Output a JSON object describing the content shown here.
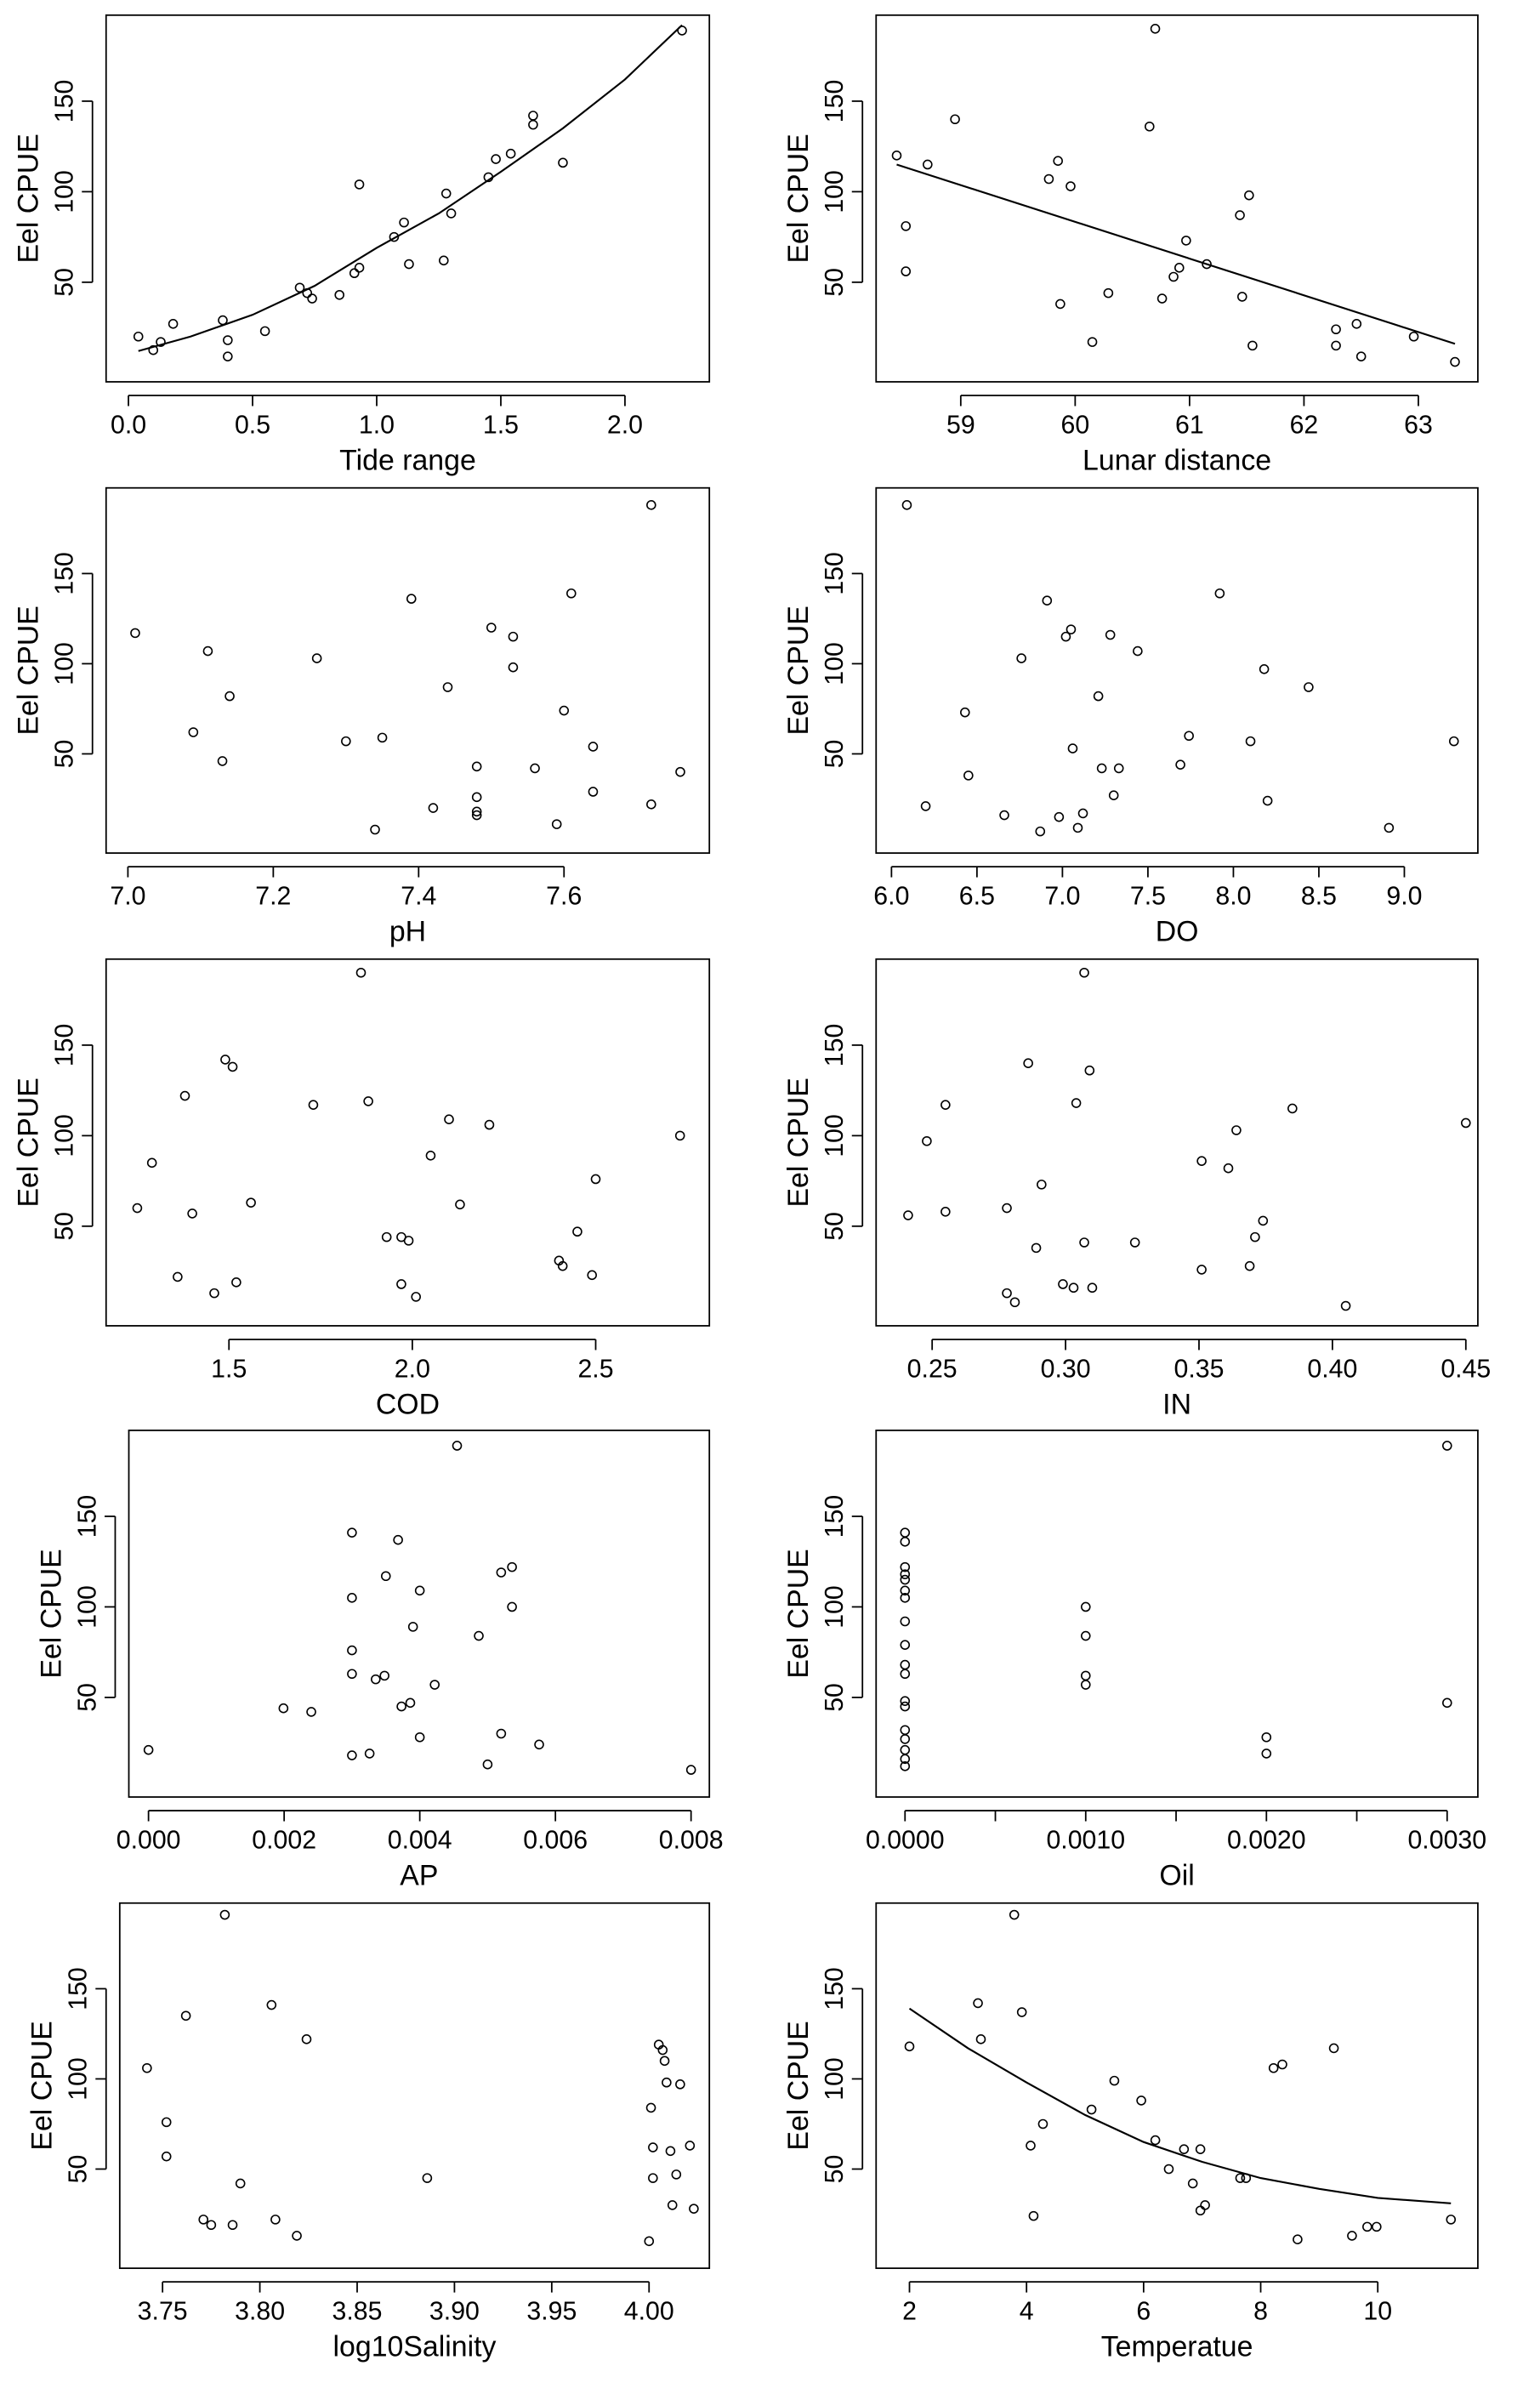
{
  "chart_data": [
    {
      "type": "scatter",
      "x_label": "Tide range",
      "y_label": "Eel CPUE",
      "x": [
        0.04,
        0.1,
        0.13,
        0.18,
        0.38,
        0.4,
        0.4,
        0.55,
        0.69,
        0.72,
        0.74,
        0.85,
        0.91,
        0.93,
        0.93,
        1.07,
        1.11,
        1.13,
        1.27,
        1.28,
        1.3,
        1.45,
        1.48,
        1.54,
        1.63,
        1.63,
        1.75,
        2.23
      ],
      "values": [
        20,
        12.5,
        17,
        27,
        29,
        18,
        9,
        23,
        47,
        44,
        41,
        43,
        55,
        58,
        104,
        75,
        83,
        60,
        62,
        99,
        88,
        108,
        118,
        121,
        137,
        142,
        116,
        189
      ],
      "trend": {
        "x": [
          0.04,
          0.25,
          0.5,
          0.75,
          1.0,
          1.25,
          1.5,
          1.75,
          2.0,
          2.23
        ],
        "values": [
          12,
          20,
          32,
          48,
          69,
          88,
          111,
          135,
          162,
          192
        ]
      },
      "xlim": [
        -0.09,
        2.34
      ],
      "ylim": [
        -5,
        197.5
      ],
      "xticks": [
        {
          "value": 0,
          "label": "0.0"
        },
        0.5,
        {
          "value": 1,
          "label": "1.0"
        },
        1.5,
        {
          "value": 2,
          "label": "2.0"
        }
      ],
      "yticks": [
        50,
        100,
        150
      ]
    },
    {
      "type": "scatter",
      "x_label": "Lunar distance",
      "y_label": "Eel CPUE",
      "x": [
        58.44,
        58.52,
        58.52,
        58.71,
        58.95,
        59.77,
        59.85,
        59.87,
        59.96,
        60.15,
        60.29,
        60.65,
        60.7,
        60.76,
        60.86,
        60.91,
        60.97,
        61.15,
        61.44,
        61.46,
        61.52,
        61.55,
        62.28,
        62.28,
        62.46,
        62.5,
        62.96,
        63.32
      ],
      "values": [
        120,
        81,
        56,
        115,
        140,
        107,
        117,
        38,
        103,
        17,
        44,
        136,
        190,
        41,
        53,
        58,
        73,
        60,
        87,
        42,
        98,
        15,
        24,
        15,
        27,
        9,
        20,
        6
      ],
      "trend": {
        "x": [
          58.44,
          63.32
        ],
        "values": [
          115,
          16
        ]
      },
      "xlim": [
        58.26,
        63.52
      ],
      "ylim": [
        -5,
        197.5
      ],
      "xticks": [
        59,
        60,
        61,
        62,
        63
      ],
      "yticks": [
        50,
        100,
        150
      ]
    },
    {
      "type": "scatter",
      "x_label": "pH",
      "y_label": "Eel CPUE",
      "x": [
        7.01,
        7.11,
        7.14,
        7.13,
        7.09,
        7.26,
        7.3,
        7.35,
        7.34,
        7.39,
        7.42,
        7.44,
        7.48,
        7.48,
        7.48,
        7.48,
        7.5,
        7.53,
        7.53,
        7.56,
        7.59,
        7.6,
        7.61,
        7.64,
        7.64,
        7.72,
        7.72,
        7.76
      ],
      "values": [
        117,
        107,
        82,
        46,
        62,
        103,
        57,
        59,
        8,
        136,
        20,
        87,
        43,
        26,
        18,
        16,
        120,
        98,
        115,
        42,
        11,
        74,
        139,
        54,
        29,
        188,
        22,
        40
      ],
      "xlim": [
        6.97,
        7.8
      ],
      "ylim": [
        -5,
        197.5
      ],
      "xticks": [
        {
          "value": 7,
          "label": "7.0"
        },
        7.2,
        7.4,
        7.6
      ],
      "yticks": [
        50,
        100,
        150
      ]
    },
    {
      "type": "scatter",
      "x_label": "DO",
      "y_label": "Eel CPUE",
      "x": [
        6.09,
        6.2,
        6.43,
        6.45,
        6.66,
        6.76,
        6.87,
        6.91,
        6.98,
        7.02,
        7.05,
        7.06,
        7.09,
        7.12,
        7.21,
        7.23,
        7.28,
        7.3,
        7.33,
        7.44,
        7.69,
        7.74,
        7.92,
        8.1,
        8.18,
        8.2,
        8.44,
        8.91,
        9.29
      ],
      "values": [
        188,
        21,
        73,
        38,
        16,
        103,
        7,
        135,
        15,
        115,
        119,
        53,
        9,
        17,
        82,
        42,
        116,
        27,
        42,
        107,
        44,
        60,
        139,
        57,
        97,
        24,
        87,
        9,
        57
      ],
      "xlim": [
        5.91,
        9.43
      ],
      "ylim": [
        -5,
        197.5
      ],
      "xticks": [
        {
          "value": 6,
          "label": "6.0"
        },
        6.5,
        {
          "value": 7,
          "label": "7.0"
        },
        7.5,
        {
          "value": 8,
          "label": "8.0"
        },
        8.5,
        {
          "value": 9,
          "label": "9.0"
        }
      ],
      "yticks": [
        50,
        100,
        150
      ]
    },
    {
      "type": "scatter",
      "x_label": "COD",
      "y_label": "Eel CPUE",
      "x": [
        1.25,
        1.29,
        1.36,
        1.38,
        1.4,
        1.46,
        1.49,
        1.51,
        1.52,
        1.56,
        1.73,
        1.86,
        1.88,
        1.93,
        1.97,
        1.97,
        1.99,
        2.01,
        2.05,
        2.1,
        2.13,
        2.21,
        2.4,
        2.41,
        2.45,
        2.49,
        2.5,
        2.73
      ],
      "values": [
        60,
        85,
        22,
        122,
        57,
        13,
        142,
        138,
        19,
        63,
        117,
        190,
        119,
        44,
        44,
        18,
        42,
        11,
        89,
        109,
        62,
        106,
        31,
        28,
        47,
        23,
        76,
        100
      ],
      "xlim": [
        1.165,
        2.81
      ],
      "ylim": [
        -5,
        197.5
      ],
      "xticks": [
        1.5,
        {
          "value": 2,
          "label": "2.0"
        },
        2.5
      ],
      "yticks": [
        50,
        100,
        150
      ]
    },
    {
      "type": "scatter",
      "x_label": "IN",
      "y_label": "Eel CPUE",
      "x": [
        0.241,
        0.248,
        0.255,
        0.255,
        0.278,
        0.278,
        0.281,
        0.286,
        0.289,
        0.291,
        0.299,
        0.303,
        0.304,
        0.307,
        0.307,
        0.309,
        0.31,
        0.326,
        0.351,
        0.351,
        0.361,
        0.364,
        0.369,
        0.371,
        0.374,
        0.385,
        0.405,
        0.45
      ],
      "values": [
        56,
        97,
        117,
        58,
        60,
        13,
        8,
        140,
        38,
        73,
        18,
        16,
        118,
        190,
        41,
        136,
        16,
        41,
        26,
        86,
        82,
        103,
        28,
        44,
        53,
        115,
        6,
        107
      ],
      "xlim": [
        0.229,
        0.4545
      ],
      "ylim": [
        -5,
        197.5
      ],
      "xticks": [
        0.25,
        {
          "value": 0.3,
          "label": "0.30"
        },
        0.35,
        {
          "value": 0.4,
          "label": "0.40"
        },
        0.45
      ],
      "yticks": [
        50,
        100,
        150
      ]
    },
    {
      "type": "scatter",
      "x_label": "AP",
      "y_label": "Eel CPUE",
      "x": [
        0,
        0.00199,
        0.0024,
        0.003,
        0.003,
        0.003,
        0.003,
        0.003,
        0.00326,
        0.00335,
        0.00348,
        0.0035,
        0.00368,
        0.00373,
        0.00386,
        0.0039,
        0.004,
        0.004,
        0.00422,
        0.00455,
        0.00487,
        0.005,
        0.0052,
        0.0052,
        0.00536,
        0.00536,
        0.00576,
        0.008
      ],
      "values": [
        21,
        44,
        42,
        141,
        105,
        76,
        63,
        18,
        19,
        60,
        62,
        117,
        137,
        45,
        47,
        89,
        109,
        28,
        57,
        189,
        84,
        13,
        119,
        30,
        122,
        100,
        24,
        10
      ],
      "xlim": [
        -0.00029,
        0.00827
      ],
      "ylim": [
        -5,
        197.5
      ],
      "xticks": [
        {
          "value": 0,
          "label": "0.000"
        },
        0.002,
        0.004,
        0.006,
        0.008
      ],
      "yticks": [
        50,
        100,
        150
      ]
    },
    {
      "type": "scatter",
      "x_label": "Oil",
      "y_label": "Eel CPUE",
      "x": [
        0,
        0,
        0,
        0,
        0,
        0,
        0,
        0,
        0,
        0,
        0,
        0,
        0,
        0,
        0,
        0,
        0,
        0,
        0.001,
        0.001,
        0.001,
        0.001,
        0.002,
        0.002,
        0.003,
        0.003
      ],
      "values": [
        141,
        136,
        122,
        118,
        115,
        109,
        105,
        92,
        79,
        68,
        63,
        48,
        45,
        32,
        27,
        21,
        16,
        12,
        100,
        84,
        62,
        57,
        28,
        19,
        189,
        47
      ],
      "xlim": [
        -0.00016,
        0.00317
      ],
      "ylim": [
        -5,
        197.5
      ],
      "xticks": [
        {
          "value": 0,
          "label": "0.0000"
        },
        {
          "value": 0.001,
          "label": "0.0010"
        },
        {
          "value": 0.002,
          "label": "0.0020"
        },
        {
          "value": 0.003,
          "label": "0.0030"
        }
      ],
      "xminor_ticks": [
        0.0005,
        0.0015,
        0.0025
      ],
      "yticks": [
        50,
        100,
        150
      ]
    },
    {
      "type": "scatter",
      "x_label": "log10Salinity",
      "y_label": "Eel CPUE",
      "x": [
        3.742,
        3.752,
        3.752,
        3.762,
        3.771,
        3.775,
        3.782,
        3.786,
        3.79,
        3.806,
        3.808,
        3.819,
        3.824,
        3.886,
        4.0,
        4.001,
        4.002,
        4.002,
        4.005,
        4.007,
        4.008,
        4.009,
        4.011,
        4.012,
        4.014,
        4.016,
        4.021,
        4.023
      ],
      "values": [
        106,
        76,
        57,
        135,
        22,
        19,
        191,
        19,
        42,
        141,
        22,
        13,
        122,
        45,
        10,
        84,
        62,
        45,
        119,
        116,
        110,
        98,
        60,
        30,
        47,
        97,
        63,
        28
      ],
      "xlim": [
        3.728,
        4.031
      ],
      "ylim": [
        -5,
        197.5
      ],
      "xticks": [
        3.75,
        {
          "value": 3.8,
          "label": "3.80"
        },
        3.85,
        {
          "value": 3.9,
          "label": "3.90"
        },
        3.95,
        {
          "value": 4,
          "label": "4.00"
        }
      ],
      "yticks": [
        50,
        100,
        150
      ]
    },
    {
      "type": "scatter",
      "x_label": "Temperatue",
      "y_label": "Eel CPUE",
      "x": [
        2.0,
        3.17,
        3.22,
        3.79,
        3.92,
        4.07,
        4.12,
        4.28,
        5.11,
        5.5,
        5.96,
        6.2,
        6.43,
        6.69,
        6.84,
        6.97,
        6.97,
        7.05,
        7.65,
        7.75,
        8.22,
        8.37,
        8.63,
        9.25,
        9.56,
        9.82,
        9.98,
        11.25
      ],
      "values": [
        118,
        142,
        122,
        191,
        137,
        63,
        24,
        75,
        83,
        99,
        88,
        66,
        50,
        61,
        42,
        61,
        27,
        30,
        45,
        45,
        106,
        108,
        11,
        117,
        13,
        18,
        18,
        22
      ],
      "trend": {
        "x": [
          2,
          3,
          4,
          5,
          6,
          7,
          8,
          9,
          10,
          11.25
        ],
        "values": [
          139,
          117,
          98,
          80,
          65,
          54,
          45,
          39,
          34,
          31
        ]
      },
      "xlim": [
        1.43,
        11.71
      ],
      "ylim": [
        -5,
        197.5
      ],
      "xticks": [
        2,
        4,
        6,
        8,
        10
      ],
      "yticks": [
        50,
        100,
        150
      ]
    }
  ]
}
